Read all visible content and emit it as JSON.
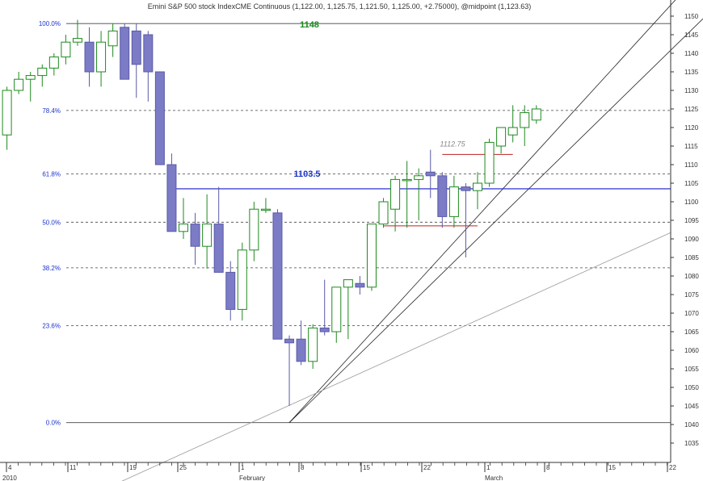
{
  "title": "Emini S&P 500 stock IndexCME Continuous (1,122.00, 1,125.75, 1,121.50, 1,125.00, +2.75000), @midpoint (1,123.63)",
  "colors": {
    "bull_body": "#ffffff",
    "bull_outline": "#1e8a1e",
    "bear_body": "#7b7bc6",
    "bear_outline": "#5a5aa8",
    "fib_line": "#444444",
    "fib_label": "#1a33cc",
    "level_blue": "#1a1acc",
    "level_red": "#c02020",
    "channel": "#222222",
    "trend_grey": "#999999"
  },
  "chart_data": {
    "type": "candlestick",
    "title": "Emini S&P 500 stock IndexCME Continuous (1,122.00, 1,125.75, 1,121.50, 1,125.00, +2.75000), @midpoint (1,123.63)",
    "ylim": [
      1030,
      1157
    ],
    "yticks": [
      1035,
      1040,
      1045,
      1050,
      1055,
      1060,
      1065,
      1070,
      1075,
      1080,
      1085,
      1090,
      1095,
      1100,
      1105,
      1110,
      1115,
      1120,
      1125,
      1130,
      1135,
      1140,
      1145,
      1150,
      1155
    ],
    "x_tick_labels": [
      "4",
      "11",
      "19",
      "25",
      "1",
      "8",
      "15",
      "22",
      "1",
      "8",
      "15",
      "22"
    ],
    "x_month_labels": [
      "2010",
      "February",
      "March"
    ],
    "candles": [
      {
        "o": 1118,
        "h": 1131,
        "l": 1114,
        "c": 1130
      },
      {
        "o": 1130,
        "h": 1135,
        "l": 1129,
        "c": 1133
      },
      {
        "o": 1133,
        "h": 1135,
        "l": 1127,
        "c": 1134
      },
      {
        "o": 1134,
        "h": 1137,
        "l": 1131,
        "c": 1136
      },
      {
        "o": 1136,
        "h": 1140,
        "l": 1134,
        "c": 1139
      },
      {
        "o": 1139,
        "h": 1145,
        "l": 1137,
        "c": 1143
      },
      {
        "o": 1143,
        "h": 1149,
        "l": 1142,
        "c": 1144
      },
      {
        "o": 1143,
        "h": 1147,
        "l": 1131,
        "c": 1135
      },
      {
        "o": 1135,
        "h": 1146,
        "l": 1131,
        "c": 1143
      },
      {
        "o": 1142,
        "h": 1148,
        "l": 1139,
        "c": 1146
      },
      {
        "o": 1147,
        "h": 1148,
        "l": 1133,
        "c": 1133
      },
      {
        "o": 1146,
        "h": 1148,
        "l": 1128,
        "c": 1137
      },
      {
        "o": 1145,
        "h": 1146,
        "l": 1127,
        "c": 1135
      },
      {
        "o": 1135,
        "h": 1135,
        "l": 1110,
        "c": 1110
      },
      {
        "o": 1110,
        "h": 1113,
        "l": 1092,
        "c": 1092
      },
      {
        "o": 1092,
        "h": 1101,
        "l": 1090,
        "c": 1094
      },
      {
        "o": 1094,
        "h": 1097,
        "l": 1083,
        "c": 1088
      },
      {
        "o": 1088,
        "h": 1102,
        "l": 1082,
        "c": 1094
      },
      {
        "o": 1094,
        "h": 1104,
        "l": 1081,
        "c": 1081
      },
      {
        "o": 1081,
        "h": 1084,
        "l": 1068,
        "c": 1071
      },
      {
        "o": 1071,
        "h": 1089,
        "l": 1068,
        "c": 1087
      },
      {
        "o": 1087,
        "h": 1100,
        "l": 1084,
        "c": 1098
      },
      {
        "o": 1098,
        "h": 1101,
        "l": 1097,
        "c": 1098
      },
      {
        "o": 1097,
        "h": 1098,
        "l": 1063,
        "c": 1063
      },
      {
        "o": 1063,
        "h": 1064,
        "l": 1045,
        "c": 1062
      },
      {
        "o": 1063,
        "h": 1068,
        "l": 1056,
        "c": 1057
      },
      {
        "o": 1057,
        "h": 1067,
        "l": 1055,
        "c": 1066
      },
      {
        "o": 1066,
        "h": 1079,
        "l": 1064,
        "c": 1065
      },
      {
        "o": 1065,
        "h": 1077,
        "l": 1062,
        "c": 1077
      },
      {
        "o": 1077,
        "h": 1079,
        "l": 1063,
        "c": 1079
      },
      {
        "o": 1078,
        "h": 1080,
        "l": 1075,
        "c": 1077
      },
      {
        "o": 1077,
        "h": 1094,
        "l": 1076,
        "c": 1094
      },
      {
        "o": 1094,
        "h": 1101,
        "l": 1093,
        "c": 1100
      },
      {
        "o": 1098,
        "h": 1107,
        "l": 1092,
        "c": 1106
      },
      {
        "o": 1106,
        "h": 1111,
        "l": 1093,
        "c": 1106
      },
      {
        "o": 1106,
        "h": 1109,
        "l": 1095,
        "c": 1107
      },
      {
        "o": 1108,
        "h": 1114,
        "l": 1101,
        "c": 1107
      },
      {
        "o": 1107,
        "h": 1108,
        "l": 1093,
        "c": 1096
      },
      {
        "o": 1096,
        "h": 1107,
        "l": 1093,
        "c": 1104
      },
      {
        "o": 1104,
        "h": 1105,
        "l": 1085,
        "c": 1103
      },
      {
        "o": 1103,
        "h": 1108,
        "l": 1098,
        "c": 1105
      },
      {
        "o": 1105,
        "h": 1117,
        "l": 1104,
        "c": 1116
      },
      {
        "o": 1115,
        "h": 1120,
        "l": 1113,
        "c": 1120
      },
      {
        "o": 1118,
        "h": 1126,
        "l": 1116,
        "c": 1120
      },
      {
        "o": 1120,
        "h": 1126,
        "l": 1115,
        "c": 1124
      },
      {
        "o": 1122,
        "h": 1126,
        "l": 1121,
        "c": 1125
      }
    ],
    "fib_levels": [
      {
        "label": "100.0%",
        "value": 1148
      },
      {
        "label": "78.4%",
        "value": 1124.6
      },
      {
        "label": "61.8%",
        "value": 1107.5
      },
      {
        "label": "50.0%",
        "value": 1094.5
      },
      {
        "label": "38.2%",
        "value": 1082.2
      },
      {
        "label": "23.6%",
        "value": 1066.6
      },
      {
        "label": "0.0%",
        "value": 1040.5
      }
    ],
    "annotations": [
      {
        "text": "1148",
        "value": 1148
      },
      {
        "text": "1103.5",
        "value": 1103.5
      },
      {
        "text": "1112.75",
        "value": 1112.75
      }
    ],
    "levels": {
      "blue": {
        "value": 1103.5,
        "from": 14,
        "to": 46
      },
      "red_upper": {
        "value": 1112.75,
        "from": 37,
        "to": 43
      },
      "red_lower": {
        "value": 1093.5,
        "from": 32,
        "to": 40
      }
    },
    "channel_lines": [
      {
        "from": [
          24,
          1040.5
        ],
        "to": [
          57,
          1155
        ]
      },
      {
        "from": [
          24,
          1040.5
        ],
        "to": [
          61,
          1155
        ]
      }
    ],
    "trend_line": {
      "from": [
        -5,
        1028
      ],
      "to": [
        60,
        1083
      ]
    }
  }
}
